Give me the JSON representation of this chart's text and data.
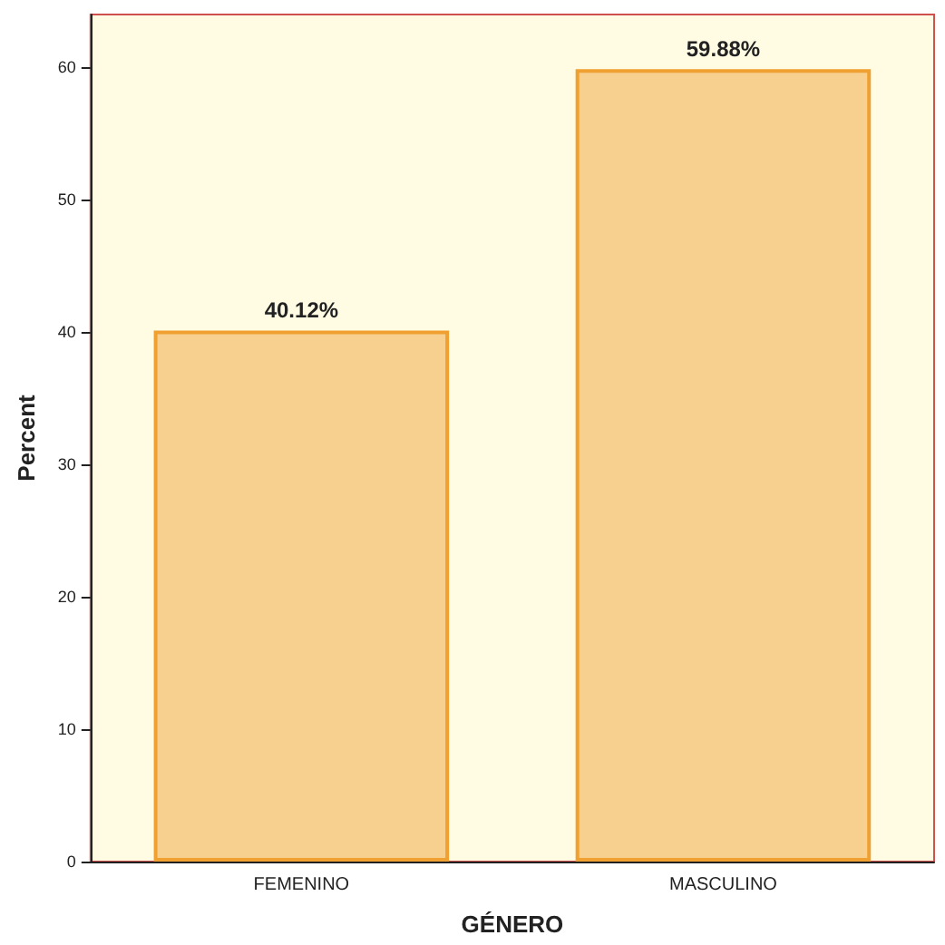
{
  "chart_data": {
    "type": "bar",
    "xlabel": "GÉNERO",
    "ylabel": "Percent",
    "categories": [
      "FEMENINO",
      "MASCULINO"
    ],
    "values": [
      40.12,
      59.88
    ],
    "value_labels": [
      "40.12%",
      "59.88%"
    ],
    "color": "#f7cf8f",
    "ylim": [
      0,
      64
    ],
    "yticks": [
      0,
      10,
      20,
      30,
      40,
      50,
      60
    ],
    "grid": false
  }
}
